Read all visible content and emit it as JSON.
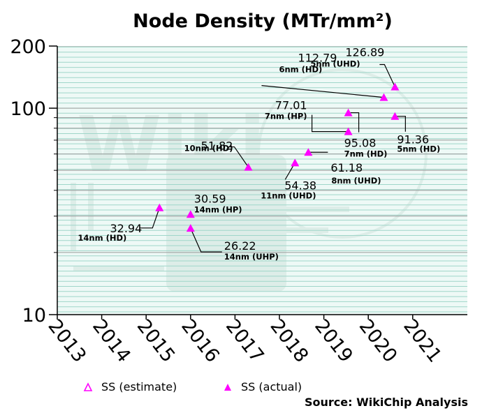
{
  "chart_data": {
    "type": "scatter",
    "title": "Node Density (MTr/mm²)",
    "xlabel": "",
    "ylabel": "",
    "y_scale": "log",
    "xlim": [
      2013,
      2022.2
    ],
    "ylim": [
      10,
      200
    ],
    "x_ticks": [
      "2013",
      "2014",
      "2015",
      "2016",
      "2017",
      "2018",
      "2019",
      "2020",
      "2021"
    ],
    "y_ticks": [
      {
        "value": 10,
        "label": "10"
      },
      {
        "value": 100,
        "label": "100"
      },
      {
        "value": 200,
        "label": "200"
      }
    ],
    "grid": true,
    "color": "#ff00ff",
    "series": [
      {
        "name": "SS (estimate)",
        "marker": "open-triangle",
        "points": []
      },
      {
        "name": "SS (actual)",
        "marker": "filled-triangle",
        "points": [
          {
            "x": 2015.3,
            "y": 32.94,
            "label": "32.94",
            "sublabel": "14nm (HD)"
          },
          {
            "x": 2016.0,
            "y": 30.59,
            "label": "30.59",
            "sublabel": "14nm (HP)"
          },
          {
            "x": 2016.0,
            "y": 26.22,
            "label": "26.22",
            "sublabel": "14nm (UHP)"
          },
          {
            "x": 2017.3,
            "y": 51.82,
            "label": "51.82",
            "sublabel": "10nm (HD)"
          },
          {
            "x": 2018.35,
            "y": 54.38,
            "label": "54.38",
            "sublabel": "11nm (UHD)"
          },
          {
            "x": 2018.65,
            "y": 61.18,
            "label": "61.18",
            "sublabel": "8nm (UHD)"
          },
          {
            "x": 2019.55,
            "y": 77.01,
            "label": "77.01",
            "sublabel": "7nm (HP)"
          },
          {
            "x": 2019.55,
            "y": 95.08,
            "label": "95.08",
            "sublabel": "7nm (HD)"
          },
          {
            "x": 2020.35,
            "y": 112.79,
            "label": "112.79",
            "sublabel": "6nm (HD)"
          },
          {
            "x": 2020.6,
            "y": 126.89,
            "label": "126.89",
            "sublabel": "5nm (UHD)"
          },
          {
            "x": 2020.6,
            "y": 91.36,
            "label": "91.36",
            "sublabel": "5nm (HD)"
          }
        ]
      }
    ],
    "legend_position": "bottom-center",
    "source": "Source: WikiChip Analysis"
  }
}
